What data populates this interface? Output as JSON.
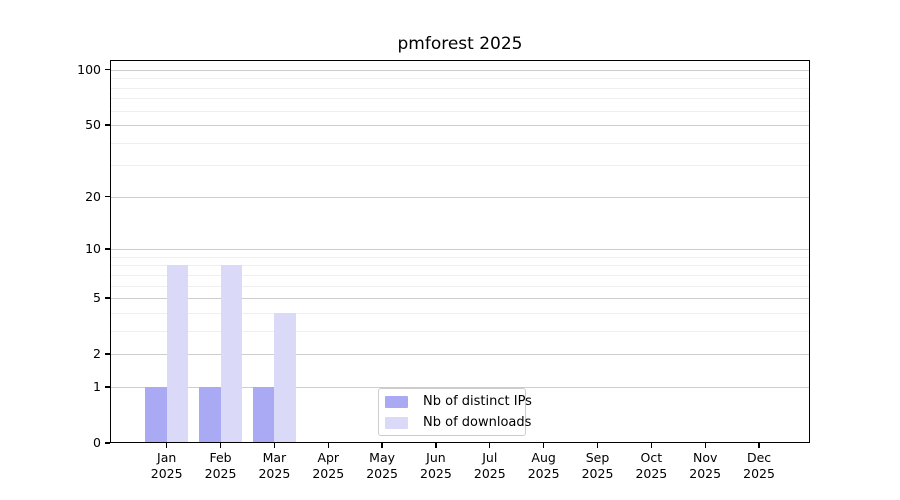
{
  "title": "pmforest 2025",
  "chart_data": {
    "type": "bar",
    "title": "pmforest 2025",
    "categories": [
      "Jan",
      "Feb",
      "Mar",
      "Apr",
      "May",
      "Jun",
      "Jul",
      "Aug",
      "Sep",
      "Oct",
      "Nov",
      "Dec"
    ],
    "category_year": "2025",
    "series": [
      {
        "name": "Nb of distinct IPs",
        "color": "#a9a9f4",
        "values": [
          1,
          1,
          1,
          0,
          0,
          0,
          0,
          0,
          0,
          0,
          0,
          0
        ]
      },
      {
        "name": "Nb of downloads",
        "color": "#dadaf8",
        "values": [
          8,
          8,
          4,
          0,
          0,
          0,
          0,
          0,
          0,
          0,
          0,
          0
        ]
      }
    ],
    "y_ticks": [
      0,
      1,
      2,
      5,
      10,
      20,
      50,
      100
    ],
    "y_minor_ticks": [
      3,
      4,
      6,
      7,
      8,
      9,
      30,
      40,
      60,
      70,
      80,
      90
    ],
    "scale": "log1p",
    "ylim": [
      0,
      113
    ],
    "grid": "horizontal major+minor",
    "legend_position": "inside lower-center",
    "colors": {
      "axis": "#000000",
      "grid_major": "#cdcdcd",
      "grid_minor": "#efefef"
    }
  }
}
